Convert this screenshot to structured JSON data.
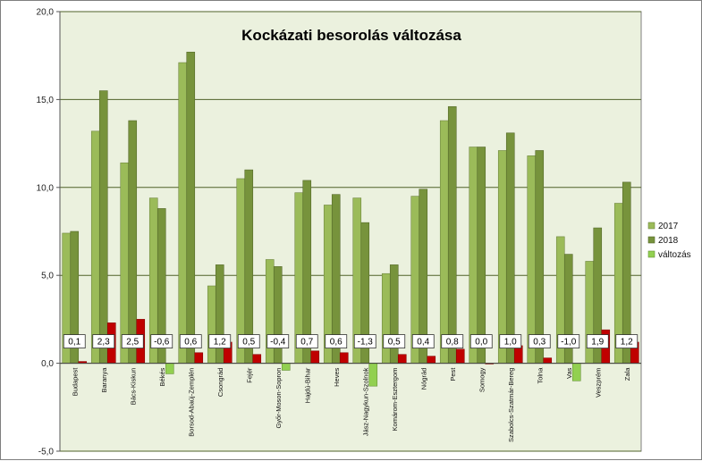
{
  "chart_data": {
    "type": "bar",
    "title": "Kockázati besorolás változása",
    "xlabel": "",
    "ylabel": "",
    "ylim": [
      -5,
      20
    ],
    "yticks": [
      "-5,0",
      "0,0",
      "5,0",
      "10,0",
      "15,0",
      "20,0"
    ],
    "grid": true,
    "legend_position": "right",
    "categories": [
      "Budapest",
      "Baranya",
      "Bács-Kiskun",
      "Békés",
      "Borsod-Abaúj-Zemplén",
      "Csongrád",
      "Fejér",
      "Győr-Moson-Sopron",
      "Hajdú-Bihar",
      "Heves",
      "Jász-Nagykun-Szolnok",
      "Komárom-Esztergom",
      "Nógrád",
      "Pest",
      "Somogy",
      "Szabolcs-Szatmár-Bereg",
      "Tolna",
      "Vas",
      "Veszprém",
      "Zala"
    ],
    "series": [
      {
        "name": "2017",
        "color": "#9bbb59",
        "values": [
          7.4,
          13.2,
          11.4,
          9.4,
          17.1,
          4.4,
          10.5,
          5.9,
          9.7,
          9.0,
          9.4,
          5.1,
          9.5,
          13.8,
          12.3,
          12.1,
          11.8,
          7.2,
          5.8,
          9.1
        ]
      },
      {
        "name": "2018",
        "color": "#77933c",
        "values": [
          7.5,
          15.5,
          13.8,
          8.8,
          17.7,
          5.6,
          11.0,
          5.5,
          10.4,
          9.6,
          8.0,
          5.6,
          9.9,
          14.6,
          12.3,
          13.1,
          12.1,
          6.2,
          7.7,
          10.3
        ]
      },
      {
        "name": "változás",
        "color_positive": "#c00000",
        "color_negative": "#92d050",
        "values": [
          0.1,
          2.3,
          2.5,
          -0.6,
          0.6,
          1.2,
          0.5,
          -0.4,
          0.7,
          0.6,
          -1.3,
          0.5,
          0.4,
          0.8,
          0.0,
          1.0,
          0.3,
          -1.0,
          1.9,
          1.2
        ]
      }
    ],
    "data_labels": [
      "0,1",
      "2,3",
      "2,5",
      "-0,6",
      "0,6",
      "1,2",
      "0,5",
      "-0,4",
      "0,7",
      "0,6",
      "-1,3",
      "0,5",
      "0,4",
      "0,8",
      "0,0",
      "1,0",
      "0,3",
      "-1,0",
      "1,9",
      "1,2"
    ],
    "plot_background": "#ebf1de",
    "gridline_color": "#4f6228"
  }
}
